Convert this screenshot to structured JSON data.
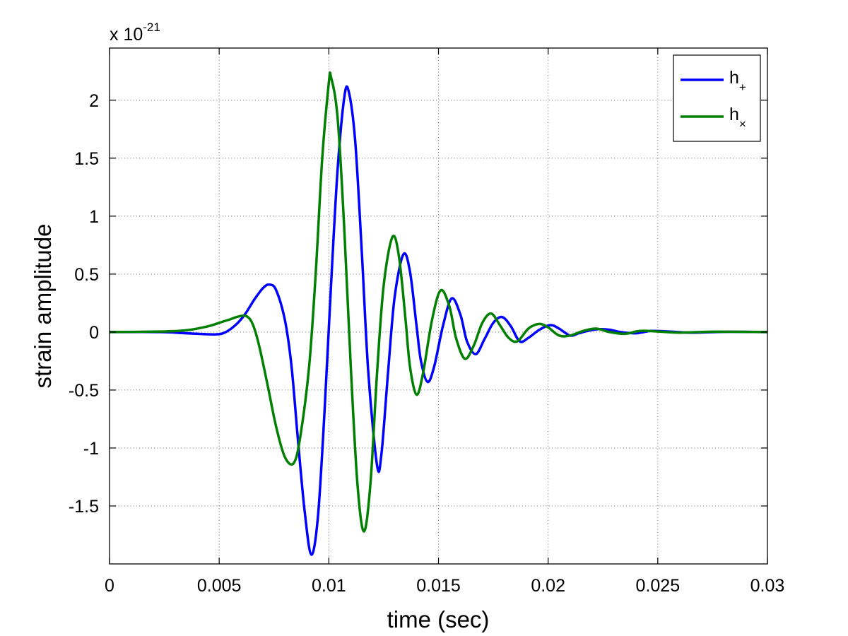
{
  "chart_data": {
    "type": "line",
    "xlabel": "time (sec)",
    "ylabel": "strain amplitude",
    "y_multiplier_prefix": "x 10",
    "y_multiplier_exponent": "-21",
    "xlim": [
      0,
      0.03
    ],
    "ylim": [
      -2.0,
      2.45
    ],
    "grid": true,
    "legend_position": "top-right",
    "x_ticks": [
      0,
      0.005,
      0.01,
      0.015,
      0.02,
      0.025,
      0.03
    ],
    "x_tick_labels": [
      "0",
      "0.005",
      "0.01",
      "0.015",
      "0.02",
      "0.025",
      "0.03"
    ],
    "y_ticks": [
      -1.5,
      -1,
      -0.5,
      0,
      0.5,
      1,
      1.5,
      2
    ],
    "y_tick_labels": [
      "-1.5",
      "-1",
      "-0.5",
      "0",
      "0.5",
      "1",
      "1.5",
      "2"
    ],
    "series": [
      {
        "name": "h",
        "subscript": "+",
        "color": "#0000ff",
        "points": [
          [
            0.0,
            0.0
          ],
          [
            0.0023,
            0.0
          ],
          [
            0.0035,
            -0.01
          ],
          [
            0.0048,
            -0.02
          ],
          [
            0.0053,
            0.0
          ],
          [
            0.0058,
            0.07
          ],
          [
            0.0062,
            0.16
          ],
          [
            0.0066,
            0.28
          ],
          [
            0.007,
            0.38
          ],
          [
            0.0073,
            0.41
          ],
          [
            0.0076,
            0.36
          ],
          [
            0.008,
            0.1
          ],
          [
            0.0083,
            -0.3
          ],
          [
            0.0086,
            -0.95
          ],
          [
            0.0089,
            -1.55
          ],
          [
            0.0092,
            -1.92
          ],
          [
            0.0095,
            -1.6
          ],
          [
            0.0098,
            -0.7
          ],
          [
            0.0101,
            0.4
          ],
          [
            0.0104,
            1.4
          ],
          [
            0.0107,
            2.02
          ],
          [
            0.0109,
            2.08
          ],
          [
            0.0112,
            1.65
          ],
          [
            0.0115,
            0.7
          ],
          [
            0.0118,
            -0.35
          ],
          [
            0.0122,
            -1.15
          ],
          [
            0.0124,
            -1.05
          ],
          [
            0.0127,
            -0.35
          ],
          [
            0.013,
            0.3
          ],
          [
            0.0134,
            0.67
          ],
          [
            0.0137,
            0.52
          ],
          [
            0.014,
            0.05
          ],
          [
            0.0142,
            -0.25
          ],
          [
            0.0145,
            -0.43
          ],
          [
            0.0148,
            -0.3
          ],
          [
            0.0152,
            0.05
          ],
          [
            0.0156,
            0.29
          ],
          [
            0.016,
            0.15
          ],
          [
            0.0163,
            -0.08
          ],
          [
            0.0167,
            -0.19
          ],
          [
            0.0171,
            -0.06
          ],
          [
            0.0175,
            0.08
          ],
          [
            0.0179,
            0.13
          ],
          [
            0.0183,
            0.05
          ],
          [
            0.0187,
            -0.08
          ],
          [
            0.0191,
            -0.05
          ],
          [
            0.0196,
            0.02
          ],
          [
            0.0201,
            0.06
          ],
          [
            0.0205,
            0.03
          ],
          [
            0.021,
            -0.03
          ],
          [
            0.0214,
            -0.01
          ],
          [
            0.0218,
            0.01
          ],
          [
            0.0223,
            0.025
          ],
          [
            0.0228,
            0.02
          ],
          [
            0.0233,
            0.0
          ],
          [
            0.024,
            -0.01
          ],
          [
            0.0247,
            0.01
          ],
          [
            0.0255,
            0.005
          ],
          [
            0.0265,
            -0.005
          ],
          [
            0.028,
            0.002
          ],
          [
            0.03,
            0.0
          ]
        ]
      },
      {
        "name": "h",
        "subscript": "×",
        "color": "#007f00",
        "points": [
          [
            0.0,
            0.0
          ],
          [
            0.0023,
            0.005
          ],
          [
            0.0035,
            0.015
          ],
          [
            0.0045,
            0.05
          ],
          [
            0.005,
            0.08
          ],
          [
            0.0055,
            0.11
          ],
          [
            0.0058,
            0.13
          ],
          [
            0.0062,
            0.14
          ],
          [
            0.0065,
            0.08
          ],
          [
            0.0068,
            -0.1
          ],
          [
            0.0072,
            -0.45
          ],
          [
            0.0076,
            -0.82
          ],
          [
            0.008,
            -1.08
          ],
          [
            0.0084,
            -1.13
          ],
          [
            0.0087,
            -0.9
          ],
          [
            0.0091,
            -0.3
          ],
          [
            0.0094,
            0.5
          ],
          [
            0.0097,
            1.5
          ],
          [
            0.01,
            2.15
          ],
          [
            0.0101,
            2.2
          ],
          [
            0.0104,
            1.85
          ],
          [
            0.0107,
            0.9
          ],
          [
            0.011,
            -0.3
          ],
          [
            0.0113,
            -1.3
          ],
          [
            0.0116,
            -1.72
          ],
          [
            0.0119,
            -1.3
          ],
          [
            0.0122,
            -0.35
          ],
          [
            0.0125,
            0.4
          ],
          [
            0.0129,
            0.82
          ],
          [
            0.0132,
            0.65
          ],
          [
            0.0135,
            0.1
          ],
          [
            0.0137,
            -0.3
          ],
          [
            0.014,
            -0.54
          ],
          [
            0.0143,
            -0.35
          ],
          [
            0.0147,
            0.1
          ],
          [
            0.0151,
            0.36
          ],
          [
            0.0155,
            0.22
          ],
          [
            0.0158,
            -0.05
          ],
          [
            0.0162,
            -0.23
          ],
          [
            0.0166,
            -0.12
          ],
          [
            0.017,
            0.08
          ],
          [
            0.0174,
            0.16
          ],
          [
            0.0178,
            0.06
          ],
          [
            0.0182,
            -0.05
          ],
          [
            0.0186,
            -0.08
          ],
          [
            0.0191,
            0.03
          ],
          [
            0.0196,
            0.07
          ],
          [
            0.02,
            0.04
          ],
          [
            0.0205,
            -0.03
          ],
          [
            0.021,
            -0.03
          ],
          [
            0.0216,
            0.01
          ],
          [
            0.0222,
            0.03
          ],
          [
            0.0228,
            0.0
          ],
          [
            0.0235,
            -0.015
          ],
          [
            0.0242,
            0.01
          ],
          [
            0.025,
            0.005
          ],
          [
            0.026,
            -0.005
          ],
          [
            0.0275,
            0.003
          ],
          [
            0.03,
            0.0
          ]
        ]
      }
    ]
  }
}
